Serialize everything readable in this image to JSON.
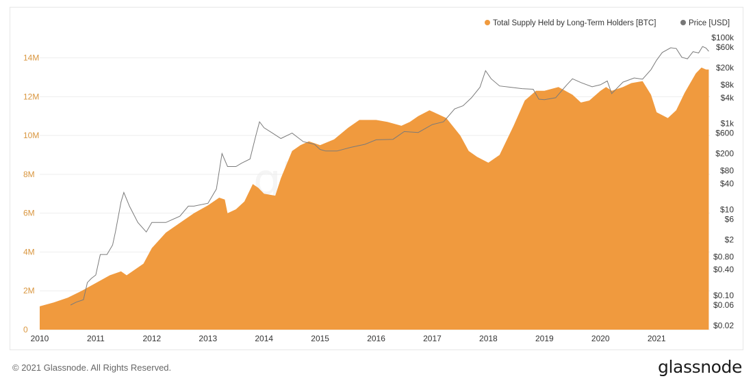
{
  "chart_data": {
    "type": "area",
    "title": "",
    "legend": {
      "position": "top-right",
      "items": [
        {
          "label": "Total Supply Held by Long-Term Holders [BTC]",
          "color": "#f09a3e"
        },
        {
          "label": "Price [USD]",
          "color": "#777777"
        }
      ]
    },
    "watermark": "glassnode",
    "x_axis": {
      "type": "date",
      "range": [
        2010.0,
        2021.95
      ],
      "ticks": [
        "2010",
        "2011",
        "2012",
        "2013",
        "2014",
        "2015",
        "2016",
        "2017",
        "2018",
        "2019",
        "2020",
        "2021"
      ]
    },
    "y_left": {
      "scale": "linear",
      "range": [
        0,
        15500000
      ],
      "ticks": [
        {
          "label": "0",
          "value": 0
        },
        {
          "label": "2M",
          "value": 2000000
        },
        {
          "label": "4M",
          "value": 4000000
        },
        {
          "label": "6M",
          "value": 6000000
        },
        {
          "label": "8M",
          "value": 8000000
        },
        {
          "label": "10M",
          "value": 10000000
        },
        {
          "label": "12M",
          "value": 12000000
        },
        {
          "label": "14M",
          "value": 14000000
        }
      ],
      "color": "#d9963f"
    },
    "y_right": {
      "scale": "log",
      "range": [
        0.02,
        100000
      ],
      "ticks": [
        {
          "label": "$100k",
          "value": 100000
        },
        {
          "label": "$60k",
          "value": 60000
        },
        {
          "label": "$20k",
          "value": 20000
        },
        {
          "label": "$8k",
          "value": 8000
        },
        {
          "label": "$4k",
          "value": 4000
        },
        {
          "label": "$1k",
          "value": 1000
        },
        {
          "label": "$600",
          "value": 600
        },
        {
          "label": "$200",
          "value": 200
        },
        {
          "label": "$80",
          "value": 80
        },
        {
          "label": "$40",
          "value": 40
        },
        {
          "label": "$10",
          "value": 10
        },
        {
          "label": "$6",
          "value": 6
        },
        {
          "label": "$2",
          "value": 2
        },
        {
          "label": "$0.80",
          "value": 0.8
        },
        {
          "label": "$0.40",
          "value": 0.4
        },
        {
          "label": "$0.10",
          "value": 0.1
        },
        {
          "label": "$0.06",
          "value": 0.06
        },
        {
          "label": "$0.02",
          "value": 0.02
        }
      ]
    },
    "series": [
      {
        "name": "Total Supply Held by Long-Term Holders [BTC]",
        "type": "area",
        "axis": "left",
        "color": "#f09a3e",
        "points": [
          [
            2010.0,
            1200000
          ],
          [
            2010.25,
            1400000
          ],
          [
            2010.5,
            1650000
          ],
          [
            2010.75,
            2000000
          ],
          [
            2011.0,
            2400000
          ],
          [
            2011.25,
            2800000
          ],
          [
            2011.45,
            3000000
          ],
          [
            2011.55,
            2800000
          ],
          [
            2011.7,
            3100000
          ],
          [
            2011.85,
            3400000
          ],
          [
            2012.0,
            4200000
          ],
          [
            2012.25,
            5000000
          ],
          [
            2012.5,
            5500000
          ],
          [
            2012.75,
            6000000
          ],
          [
            2013.0,
            6400000
          ],
          [
            2013.2,
            6800000
          ],
          [
            2013.3,
            6700000
          ],
          [
            2013.35,
            6000000
          ],
          [
            2013.5,
            6200000
          ],
          [
            2013.65,
            6600000
          ],
          [
            2013.8,
            7500000
          ],
          [
            2013.9,
            7300000
          ],
          [
            2014.0,
            7000000
          ],
          [
            2014.2,
            6900000
          ],
          [
            2014.3,
            7800000
          ],
          [
            2014.5,
            9200000
          ],
          [
            2014.65,
            9500000
          ],
          [
            2014.8,
            9700000
          ],
          [
            2015.0,
            9500000
          ],
          [
            2015.25,
            9800000
          ],
          [
            2015.5,
            10400000
          ],
          [
            2015.7,
            10800000
          ],
          [
            2016.0,
            10800000
          ],
          [
            2016.2,
            10700000
          ],
          [
            2016.45,
            10500000
          ],
          [
            2016.6,
            10700000
          ],
          [
            2016.75,
            11000000
          ],
          [
            2016.95,
            11300000
          ],
          [
            2017.1,
            11100000
          ],
          [
            2017.25,
            10900000
          ],
          [
            2017.5,
            10000000
          ],
          [
            2017.65,
            9200000
          ],
          [
            2017.8,
            8900000
          ],
          [
            2018.0,
            8600000
          ],
          [
            2018.2,
            9000000
          ],
          [
            2018.45,
            10500000
          ],
          [
            2018.65,
            11800000
          ],
          [
            2018.85,
            12300000
          ],
          [
            2019.0,
            12300000
          ],
          [
            2019.25,
            12500000
          ],
          [
            2019.5,
            12100000
          ],
          [
            2019.65,
            11700000
          ],
          [
            2019.8,
            11800000
          ],
          [
            2020.0,
            12300000
          ],
          [
            2020.1,
            12500000
          ],
          [
            2020.2,
            12300000
          ],
          [
            2020.4,
            12500000
          ],
          [
            2020.55,
            12700000
          ],
          [
            2020.75,
            12800000
          ],
          [
            2020.9,
            12100000
          ],
          [
            2021.0,
            11200000
          ],
          [
            2021.2,
            10900000
          ],
          [
            2021.35,
            11300000
          ],
          [
            2021.5,
            12200000
          ],
          [
            2021.7,
            13200000
          ],
          [
            2021.8,
            13500000
          ],
          [
            2021.88,
            13400000
          ],
          [
            2021.93,
            13400000
          ]
        ]
      },
      {
        "name": "Price [USD]",
        "type": "line",
        "axis": "right",
        "color": "#777777",
        "points": [
          [
            2010.55,
            0.06
          ],
          [
            2010.65,
            0.07
          ],
          [
            2010.78,
            0.08
          ],
          [
            2010.85,
            0.2
          ],
          [
            2010.92,
            0.25
          ],
          [
            2011.0,
            0.3
          ],
          [
            2011.08,
            0.9
          ],
          [
            2011.2,
            0.9
          ],
          [
            2011.3,
            1.5
          ],
          [
            2011.35,
            3
          ],
          [
            2011.45,
            15
          ],
          [
            2011.5,
            25
          ],
          [
            2011.6,
            12
          ],
          [
            2011.75,
            5
          ],
          [
            2011.9,
            3
          ],
          [
            2012.0,
            5
          ],
          [
            2012.25,
            5
          ],
          [
            2012.5,
            7
          ],
          [
            2012.65,
            12
          ],
          [
            2012.75,
            12
          ],
          [
            2013.0,
            14
          ],
          [
            2013.15,
            30
          ],
          [
            2013.25,
            200
          ],
          [
            2013.35,
            100
          ],
          [
            2013.5,
            100
          ],
          [
            2013.6,
            120
          ],
          [
            2013.75,
            150
          ],
          [
            2013.85,
            500
          ],
          [
            2013.92,
            1100
          ],
          [
            2014.0,
            800
          ],
          [
            2014.15,
            600
          ],
          [
            2014.3,
            450
          ],
          [
            2014.5,
            600
          ],
          [
            2014.7,
            380
          ],
          [
            2014.9,
            330
          ],
          [
            2015.0,
            250
          ],
          [
            2015.1,
            230
          ],
          [
            2015.3,
            230
          ],
          [
            2015.55,
            280
          ],
          [
            2015.8,
            330
          ],
          [
            2016.0,
            420
          ],
          [
            2016.3,
            430
          ],
          [
            2016.5,
            650
          ],
          [
            2016.75,
            620
          ],
          [
            2017.0,
            950
          ],
          [
            2017.2,
            1100
          ],
          [
            2017.4,
            2200
          ],
          [
            2017.55,
            2600
          ],
          [
            2017.7,
            4000
          ],
          [
            2017.85,
            7000
          ],
          [
            2017.95,
            17000
          ],
          [
            2018.05,
            11000
          ],
          [
            2018.2,
            7500
          ],
          [
            2018.4,
            7000
          ],
          [
            2018.6,
            6500
          ],
          [
            2018.8,
            6300
          ],
          [
            2018.9,
            3700
          ],
          [
            2019.0,
            3600
          ],
          [
            2019.2,
            4000
          ],
          [
            2019.4,
            8000
          ],
          [
            2019.5,
            11000
          ],
          [
            2019.65,
            9000
          ],
          [
            2019.85,
            7200
          ],
          [
            2020.0,
            8000
          ],
          [
            2020.12,
            9800
          ],
          [
            2020.2,
            5000
          ],
          [
            2020.4,
            9200
          ],
          [
            2020.6,
            11500
          ],
          [
            2020.75,
            10800
          ],
          [
            2020.9,
            18000
          ],
          [
            2021.0,
            30000
          ],
          [
            2021.1,
            45000
          ],
          [
            2021.25,
            58000
          ],
          [
            2021.35,
            56000
          ],
          [
            2021.45,
            35000
          ],
          [
            2021.55,
            32000
          ],
          [
            2021.65,
            47000
          ],
          [
            2021.75,
            44000
          ],
          [
            2021.82,
            62000
          ],
          [
            2021.88,
            57000
          ],
          [
            2021.93,
            48000
          ]
        ]
      }
    ]
  },
  "footer": {
    "copyright": "© 2021 Glassnode. All Rights Reserved.",
    "logo": "glassnode"
  }
}
